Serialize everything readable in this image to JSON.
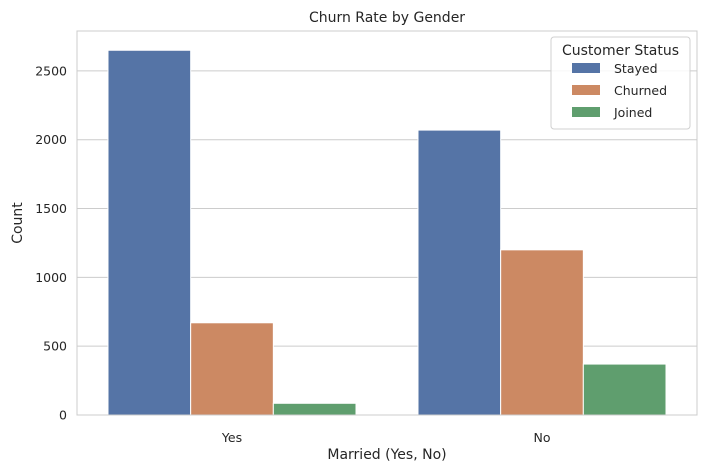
{
  "chart_data": {
    "type": "bar",
    "title": "Churn Rate by Gender",
    "xlabel": "Married (Yes, No)",
    "ylabel": "Count",
    "categories": [
      "Yes",
      "No"
    ],
    "series": [
      {
        "name": "Stayed",
        "values": [
          2650,
          2070
        ],
        "color": "#5574a6"
      },
      {
        "name": "Churned",
        "values": [
          670,
          1200
        ],
        "color": "#cc8963"
      },
      {
        "name": "Joined",
        "values": [
          85,
          370
        ],
        "color": "#5f9e6e"
      }
    ],
    "yticks": [
      0,
      500,
      1000,
      1500,
      2000,
      2500
    ],
    "ylim": [
      0,
      2790
    ],
    "grid": true,
    "legend": {
      "title": "Customer Status",
      "placement": "top-right"
    }
  }
}
